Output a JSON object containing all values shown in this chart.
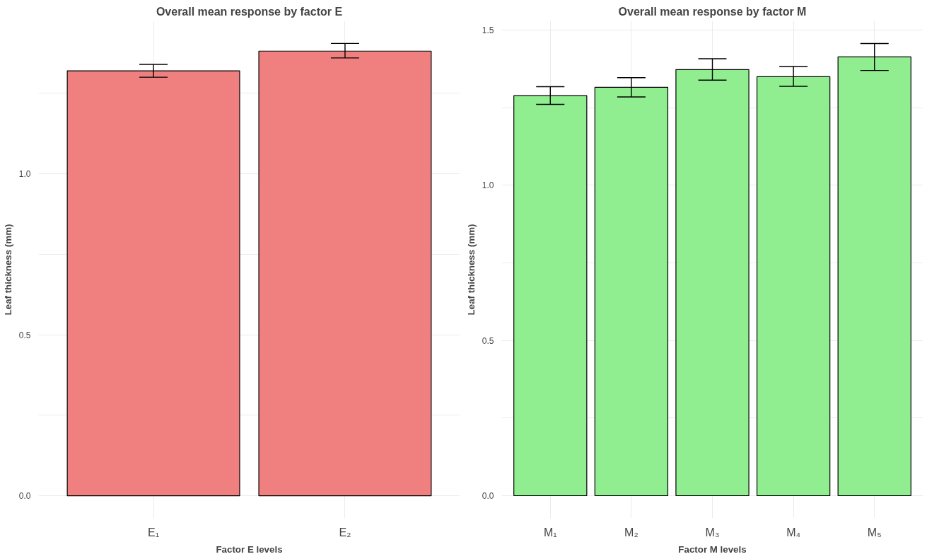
{
  "chart_data": [
    {
      "type": "bar",
      "title": "Overall mean response by factor E",
      "xlabel": "Factor E levels",
      "ylabel": "Leaf thickness (mm)",
      "categories": [
        "E₁",
        "E₂"
      ],
      "values": [
        1.32,
        1.381
      ],
      "color": "#f08080",
      "errors": [
        [
          1.3,
          1.34
        ],
        [
          1.36,
          1.405
        ]
      ],
      "ylim": [
        -0.07,
        1.475
      ],
      "yticks": [
        {
          "value": 0.0,
          "label": "0.0"
        },
        {
          "value": 0.25,
          "label": null
        },
        {
          "value": 0.5,
          "label": "0.5"
        },
        {
          "value": 0.75,
          "label": null
        },
        {
          "value": 1.0,
          "label": "1.0"
        },
        {
          "value": 1.25,
          "label": null
        }
      ],
      "grid": true
    },
    {
      "type": "bar",
      "title": "Overall mean response by factor M",
      "xlabel": "Factor M levels",
      "ylabel": "Leaf thickness (mm)",
      "categories": [
        "M₁",
        "M₂",
        "M₃",
        "M₄",
        "M₅"
      ],
      "values": [
        1.289,
        1.316,
        1.373,
        1.35,
        1.414
      ],
      "color": "#90ee90",
      "errors": [
        [
          1.261,
          1.318
        ],
        [
          1.285,
          1.347
        ],
        [
          1.339,
          1.408
        ],
        [
          1.319,
          1.383
        ],
        [
          1.37,
          1.457
        ]
      ],
      "ylim": [
        -0.073,
        1.53
      ],
      "yticks": [
        {
          "value": 0.0,
          "label": "0.0"
        },
        {
          "value": 0.25,
          "label": null
        },
        {
          "value": 0.5,
          "label": "0.5"
        },
        {
          "value": 0.75,
          "label": null
        },
        {
          "value": 1.0,
          "label": "1.0"
        },
        {
          "value": 1.25,
          "label": null
        },
        {
          "value": 1.5,
          "label": "1.5"
        }
      ],
      "grid": true
    }
  ]
}
